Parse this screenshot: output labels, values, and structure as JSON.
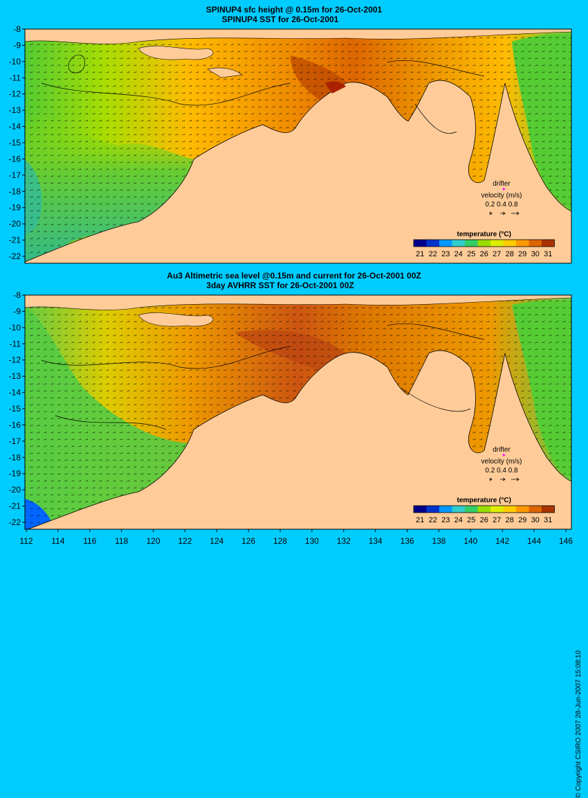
{
  "panels": [
    {
      "title_line1": "SPINUP4 sfc height @ 0.15m for 26-Oct-2001",
      "title_line2": "SPINUP4 SST for 26-Oct-2001",
      "y_tick_labels": [
        "-8",
        "-9",
        "-10",
        "-11",
        "-12",
        "-13",
        "-14",
        "-15",
        "-16",
        "-17",
        "-18",
        "-19",
        "-20",
        "-21",
        "-22"
      ],
      "drifter_label": "drifter",
      "velocity_label": "velocity (m/s)",
      "velocity_values": "0.2 0.4 0.8",
      "legend_title": "temperature (°C)",
      "legend_ticks": [
        "21",
        "22",
        "23",
        "24",
        "25",
        "26",
        "27",
        "28",
        "29",
        "30",
        "31"
      ]
    },
    {
      "title_line1": "Au3 Altimetric sea level  @0.15m and current for 26-Oct-2001 00Z",
      "title_line2": "3day AVHRR SST for 26-Oct-2001 00Z",
      "y_tick_labels": [
        "-8",
        "-9",
        "-10",
        "-11",
        "-12",
        "-13",
        "-14",
        "-15",
        "-16",
        "-17",
        "-18",
        "-19",
        "-20",
        "-21",
        "-22"
      ],
      "drifter_label": "drifter",
      "velocity_label": "velocity (m/s)",
      "velocity_values": "0.2 0.4 0.8",
      "legend_title": "temperature (°C)",
      "legend_ticks": [
        "21",
        "22",
        "23",
        "24",
        "25",
        "26",
        "27",
        "28",
        "29",
        "30",
        "31"
      ]
    }
  ],
  "x_tick_labels": [
    "112",
    "114",
    "116",
    "118",
    "120",
    "122",
    "124",
    "126",
    "128",
    "130",
    "132",
    "134",
    "136",
    "138",
    "140",
    "142",
    "144",
    "146"
  ],
  "copyright": "© Copyright CSIRO 2007  28-Jun-2007 15:08:10",
  "colors": {
    "background": "#00ccff",
    "land": "#ffcc99",
    "temperature_scale": [
      "#00008b",
      "#0033cc",
      "#0099ff",
      "#33cccc",
      "#33cc66",
      "#99dd00",
      "#ddee00",
      "#ffcc00",
      "#ff9900",
      "#dd6600",
      "#aa3300"
    ]
  }
}
